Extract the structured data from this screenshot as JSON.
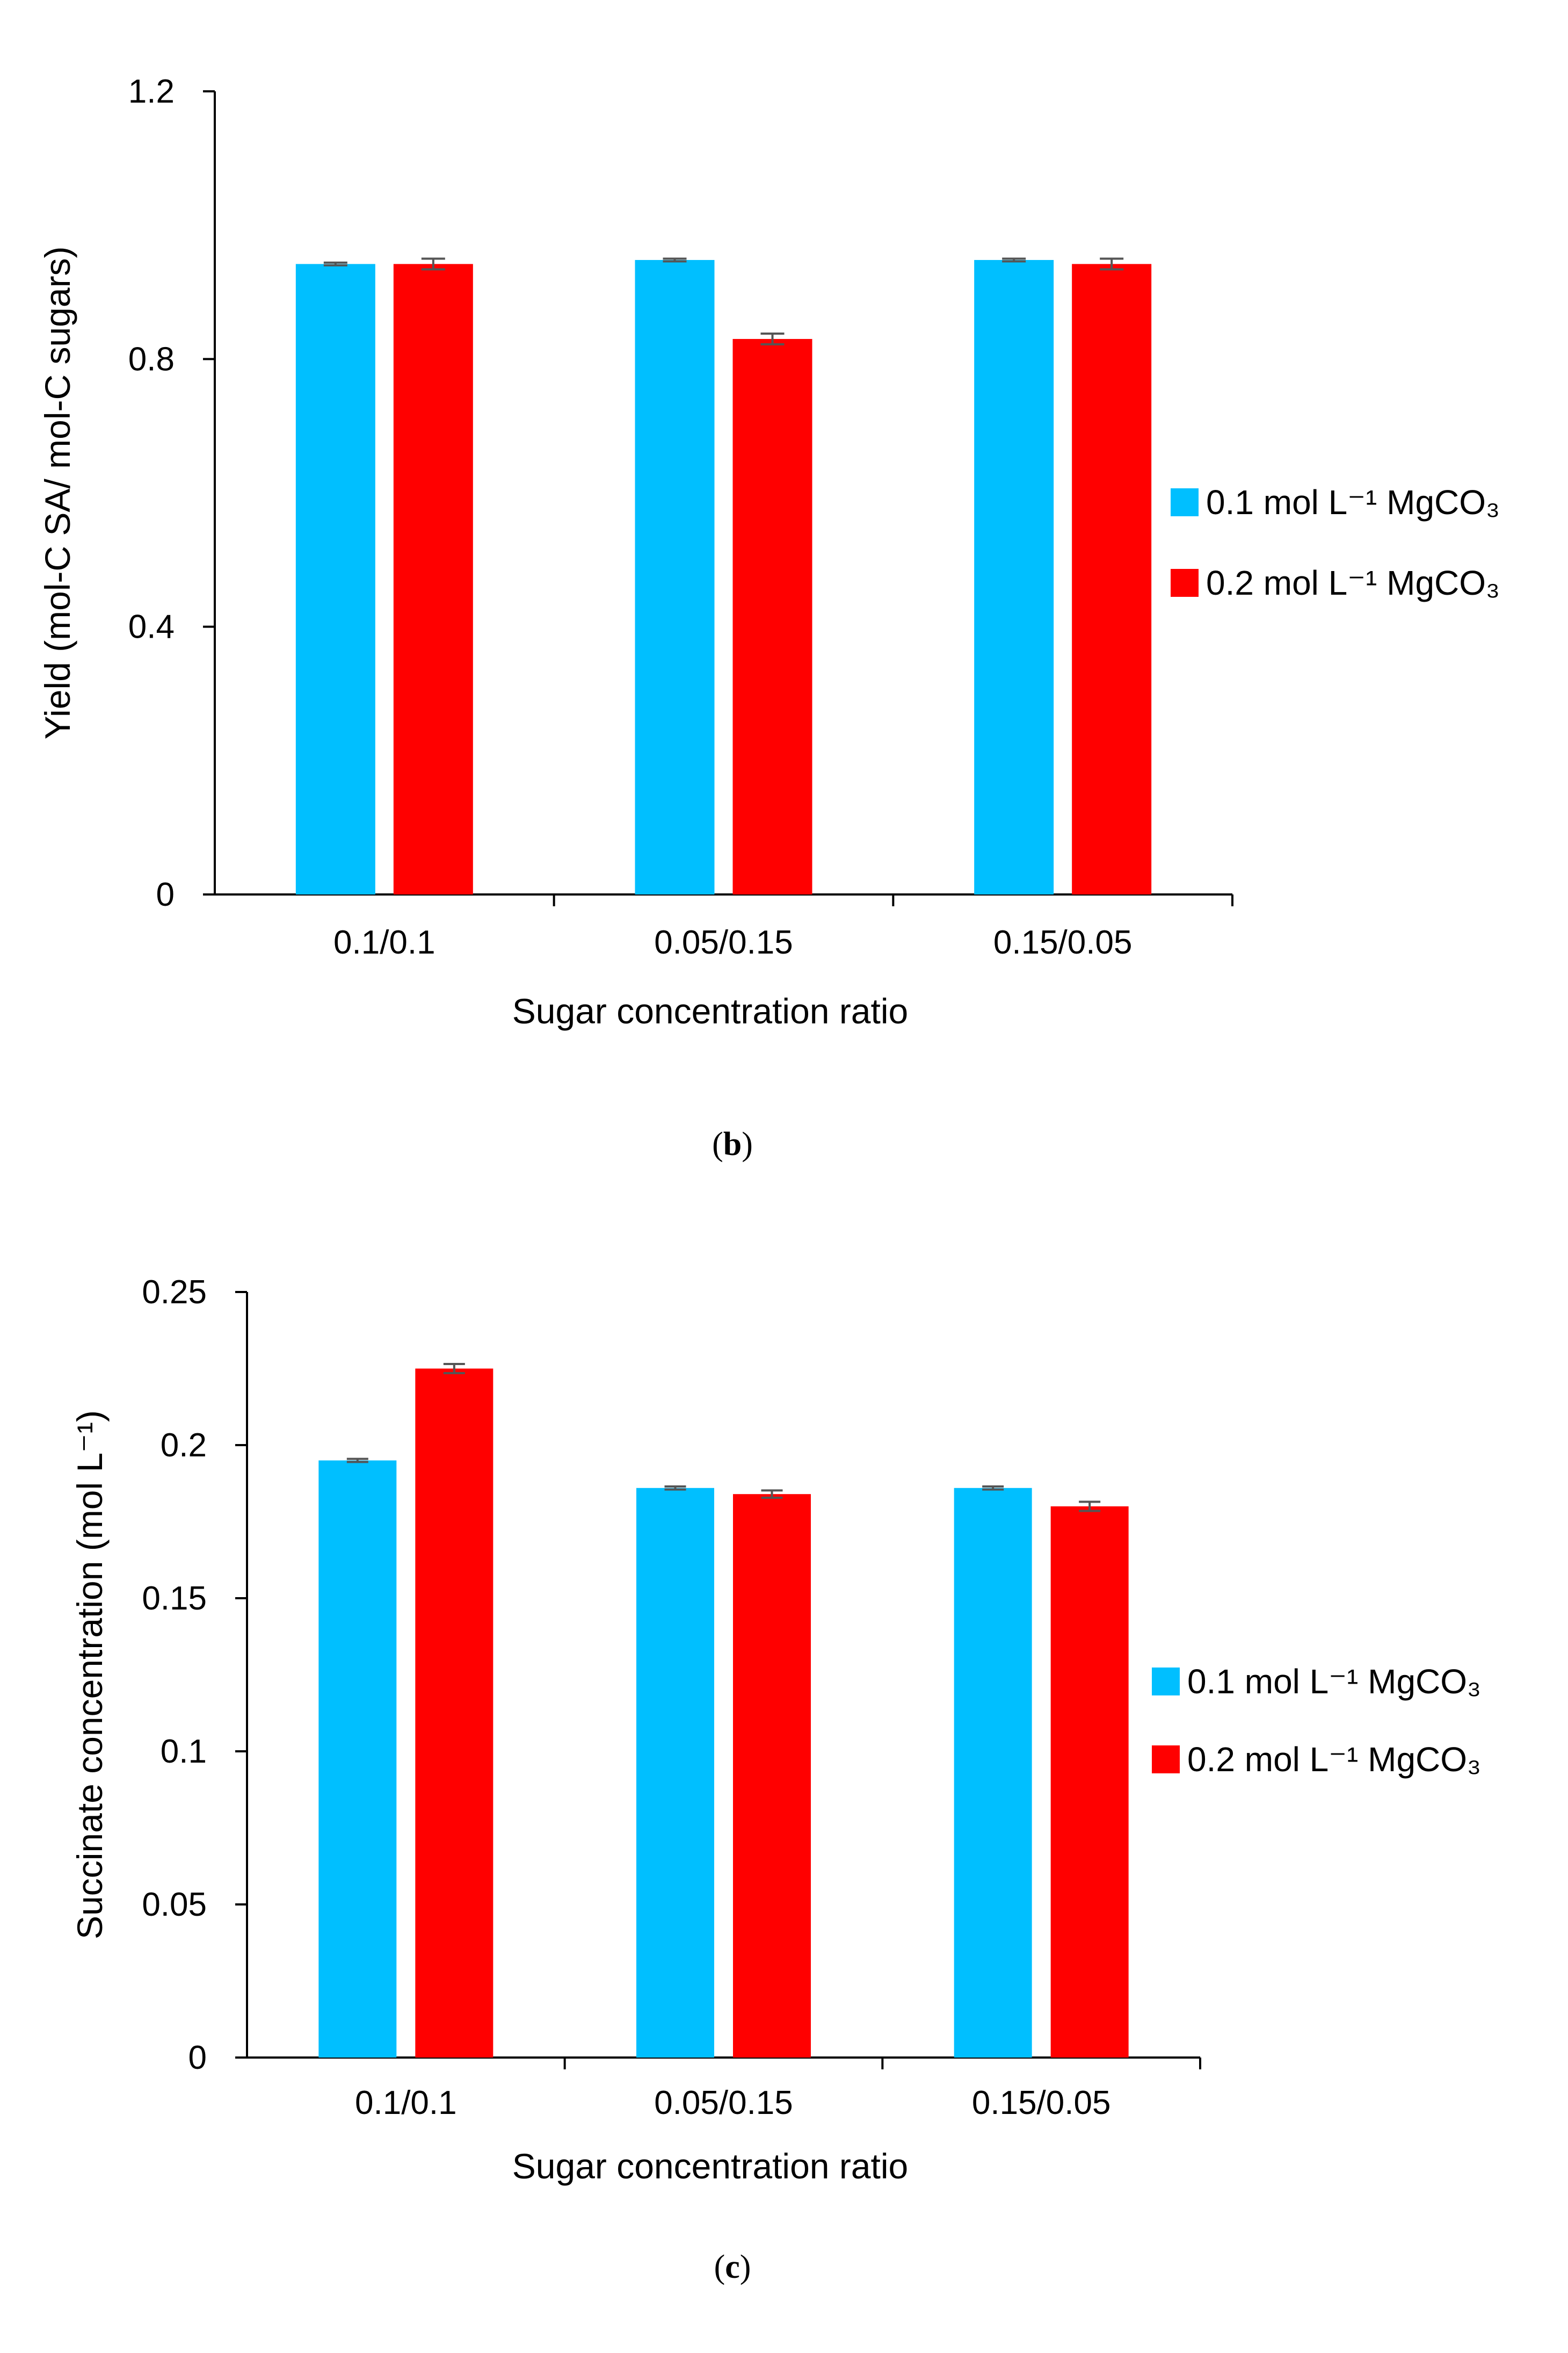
{
  "chart_data": [
    {
      "type": "bar",
      "panel_label": "b",
      "title": "",
      "xlabel": "Sugar concentration ratio",
      "ylabel": "Yield (mol-C SA/ mol-C sugars)",
      "categories": [
        "0.1/0.1",
        "0.05/0.15",
        "0.15/0.05"
      ],
      "ylim": [
        0,
        1.2
      ],
      "yticks": [
        0,
        0.4,
        0.8,
        1.2
      ],
      "ytick_labels": [
        "0",
        "0.4",
        "0.8",
        "1.2"
      ],
      "grid": false,
      "legend_position": "right",
      "series": [
        {
          "name": "0.1 mol L⁻¹  MgCO₃",
          "color": "#00bfff",
          "values": [
            0.942,
            0.948,
            0.948
          ],
          "errors": [
            0.002,
            0.002,
            0.002
          ]
        },
        {
          "name": "0.2 mol L⁻¹ MgCO₃",
          "color": "#ff0000",
          "values": [
            0.942,
            0.83,
            0.942
          ],
          "errors": [
            0.008,
            0.008,
            0.008
          ]
        }
      ]
    },
    {
      "type": "bar",
      "panel_label": "c",
      "title": "",
      "xlabel": "Sugar concentration ratio",
      "ylabel": "Succinate concentration (mol L⁻¹)",
      "categories": [
        "0.1/0.1",
        "0.05/0.15",
        "0.15/0.05"
      ],
      "ylim": [
        0,
        0.25
      ],
      "yticks": [
        0,
        0.05,
        0.1,
        0.15,
        0.2,
        0.25
      ],
      "ytick_labels": [
        "0",
        "0.05",
        "0.1",
        "0.15",
        "0.2",
        "0.25"
      ],
      "grid": false,
      "legend_position": "right",
      "series": [
        {
          "name": "0.1 mol L⁻¹  MgCO₃",
          "color": "#00bfff",
          "values": [
            0.195,
            0.186,
            0.186
          ],
          "errors": [
            0.0005,
            0.0005,
            0.0005
          ]
        },
        {
          "name": "0.2 mol L⁻¹  MgCO₃",
          "color": "#ff0000",
          "values": [
            0.225,
            0.184,
            0.18
          ],
          "errors": [
            0.0015,
            0.0012,
            0.0015
          ]
        }
      ]
    }
  ]
}
